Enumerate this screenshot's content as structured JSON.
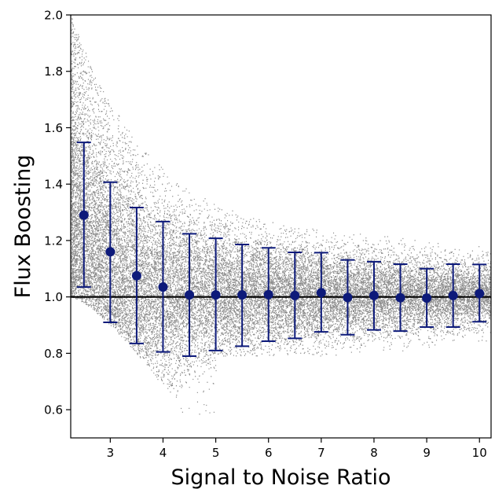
{
  "chart_data": {
    "type": "scatter",
    "title": "",
    "xlabel": "Signal to Noise Ratio",
    "ylabel": "Flux Boosting",
    "xlim": [
      2.25,
      10.22
    ],
    "ylim": [
      0.5,
      2.0
    ],
    "xticks": [
      3,
      4,
      5,
      6,
      7,
      8,
      9,
      10
    ],
    "xtick_labels": [
      "3",
      "4",
      "5",
      "6",
      "7",
      "8",
      "9",
      "10"
    ],
    "yticks": [
      0.6,
      0.8,
      1.0,
      1.2,
      1.4,
      1.6,
      1.8,
      2.0
    ],
    "ytick_labels": [
      "0.6",
      "0.8",
      "1.0",
      "1.2",
      "1.4",
      "1.6",
      "1.8",
      "2.0"
    ],
    "reference_line": {
      "y": 1.0,
      "color": "#000000"
    },
    "scatter_cloud": {
      "color": "#8c8c8c",
      "description_values": {
        "lower_envelope_at_snr": [
          [
            2.25,
            1.0
          ],
          [
            3,
            0.83
          ],
          [
            4,
            0.63
          ],
          [
            4.6,
            0.5
          ]
        ],
        "upper_envelope_at_snr": [
          [
            2.25,
            2.0
          ],
          [
            3,
            1.68
          ],
          [
            4,
            1.5
          ],
          [
            5,
            1.38
          ],
          [
            6,
            1.3
          ],
          [
            7,
            1.27
          ],
          [
            8,
            1.24
          ],
          [
            9,
            1.22
          ],
          [
            10,
            1.21
          ]
        ],
        "min_floor_at_high_snr": 0.79
      }
    },
    "series": [
      {
        "type": "errorbar",
        "color": "#0d1a7a",
        "x": [
          2.5,
          3.0,
          3.5,
          4.0,
          4.5,
          5.0,
          5.5,
          6.0,
          6.5,
          7.0,
          7.5,
          8.0,
          8.5,
          9.0,
          9.5,
          10.0
        ],
        "y": [
          1.29,
          1.16,
          1.075,
          1.035,
          1.007,
          1.007,
          1.007,
          1.008,
          1.005,
          1.015,
          0.998,
          1.005,
          0.997,
          0.996,
          1.005,
          1.012
        ],
        "y_low": [
          1.035,
          0.91,
          0.835,
          0.805,
          0.79,
          0.81,
          0.825,
          0.843,
          0.853,
          0.876,
          0.866,
          0.883,
          0.879,
          0.893,
          0.893,
          0.912
        ],
        "y_high": [
          1.548,
          1.407,
          1.317,
          1.267,
          1.224,
          1.208,
          1.186,
          1.174,
          1.158,
          1.157,
          1.131,
          1.125,
          1.116,
          1.1,
          1.116,
          1.115
        ]
      }
    ]
  }
}
